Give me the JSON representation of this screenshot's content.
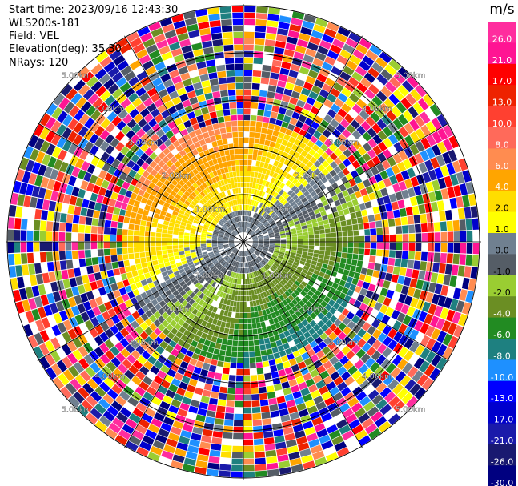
{
  "header": {
    "start_time": "Start time: 2023/09/16 12:43:30",
    "instrument": "WLS200s-181",
    "field": "Field: VEL",
    "elevation": "Elevation(deg): 35.30",
    "nrays": "NRays: 120"
  },
  "chart_data": {
    "type": "heatmap",
    "projection": "polar PPI",
    "field": "VEL",
    "units": "m/s",
    "nrays": 120,
    "range_rings_km": [
      1.0,
      2.0,
      3.0,
      4.0,
      5.0
    ],
    "ring_labels": [
      "1.00km",
      "2.00km",
      "3.00km",
      "4.00km",
      "5.00km"
    ],
    "colorbar": {
      "title": "m/s",
      "ticks": [
        "26.0",
        "21.0",
        "17.0",
        "13.0",
        "10.0",
        "8.0",
        "6.0",
        "4.0",
        "2.0",
        "1.0",
        "0.0",
        "-1.0",
        "-2.0",
        "-4.0",
        "-6.0",
        "-8.0",
        "-10.0",
        "-13.0",
        "-17.0",
        "-21.0",
        "-26.0",
        "-30.0"
      ],
      "colors": [
        "#ff2d9e",
        "#ff1493",
        "#ff0000",
        "#ee2200",
        "#ff4030",
        "#ff6a5a",
        "#ff8c50",
        "#ffa500",
        "#ffdd00",
        "#ffff00",
        "#708090",
        "#555d66",
        "#9acd32",
        "#6b8e23",
        "#228b22",
        "#1e8080",
        "#1e90ff",
        "#0000ff",
        "#0000cd",
        "#1a1aaa",
        "#191970",
        "#000080"
      ]
    },
    "notes": "Inner region (< ~2.6 km) shows coherent velocities: yellow/orange (positive) to the north and west, grey near zero around center, olive/green (negative) to the south-east. Beyond ~2.6 km the returns are noise (random colors)."
  }
}
